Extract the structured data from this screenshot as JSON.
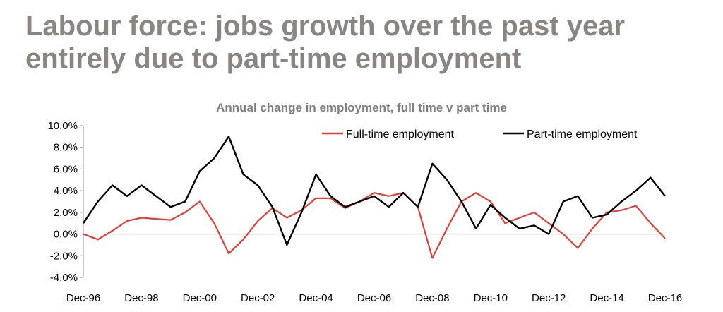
{
  "header": {
    "title": "Labour force: jobs growth over the past year entirely due to part-time employment"
  },
  "chart_data": {
    "type": "line",
    "title": "Annual change in employment, full time v part time",
    "xlabel": "",
    "ylabel": "",
    "x_tick_labels": [
      "Dec-96",
      "Dec-98",
      "Dec-00",
      "Dec-02",
      "Dec-04",
      "Dec-06",
      "Dec-08",
      "Dec-10",
      "Dec-12",
      "Dec-14",
      "Dec-16"
    ],
    "y_tick_labels": [
      "-4.0%",
      "-2.0%",
      "0.0%",
      "2.0%",
      "4.0%",
      "6.0%",
      "8.0%",
      "10.0%"
    ],
    "ylim": [
      -4.0,
      10.0
    ],
    "x_range": [
      "Dec-96",
      "Dec-16"
    ],
    "grid": false,
    "legend_position": "top-right",
    "colors": {
      "full_time": "#e0403a",
      "part_time": "#000000"
    },
    "x": [
      "Dec-96",
      "Jun-97",
      "Dec-97",
      "Jun-98",
      "Dec-98",
      "Jun-99",
      "Dec-99",
      "Jun-00",
      "Dec-00",
      "Jun-01",
      "Dec-01",
      "Jun-02",
      "Dec-02",
      "Jun-03",
      "Dec-03",
      "Jun-04",
      "Dec-04",
      "Jun-05",
      "Dec-05",
      "Jun-06",
      "Dec-06",
      "Jun-07",
      "Dec-07",
      "Jun-08",
      "Dec-08",
      "Jun-09",
      "Dec-09",
      "Jun-10",
      "Dec-10",
      "Jun-11",
      "Dec-11",
      "Jun-12",
      "Dec-12",
      "Jun-13",
      "Dec-13",
      "Jun-14",
      "Dec-14",
      "Jun-15",
      "Dec-15",
      "Jun-16",
      "Dec-16"
    ],
    "series": [
      {
        "name": "Full-time employment",
        "values": [
          0.0,
          -0.5,
          0.3,
          1.2,
          1.5,
          1.4,
          1.3,
          2.0,
          3.0,
          1.0,
          -1.8,
          -0.5,
          1.2,
          2.4,
          1.5,
          2.2,
          3.3,
          3.3,
          2.4,
          3.0,
          3.8,
          3.5,
          3.8,
          2.5,
          -2.2,
          0.5,
          3.0,
          3.8,
          3.0,
          1.0,
          1.5,
          2.0,
          1.0,
          0.0,
          -1.3,
          0.5,
          2.0,
          2.2,
          2.6,
          1.0,
          -0.4
        ]
      },
      {
        "name": "Part-time employment",
        "values": [
          1.0,
          3.0,
          4.5,
          3.5,
          4.5,
          3.5,
          2.5,
          3.0,
          5.8,
          7.0,
          9.0,
          5.5,
          4.5,
          2.5,
          -1.0,
          2.0,
          5.5,
          3.5,
          2.5,
          3.0,
          3.5,
          2.5,
          3.8,
          2.5,
          6.5,
          5.0,
          3.0,
          0.5,
          2.7,
          1.5,
          0.5,
          0.8,
          0.0,
          3.0,
          3.5,
          1.5,
          1.8,
          3.0,
          4.0,
          5.2,
          3.5
        ]
      }
    ]
  }
}
